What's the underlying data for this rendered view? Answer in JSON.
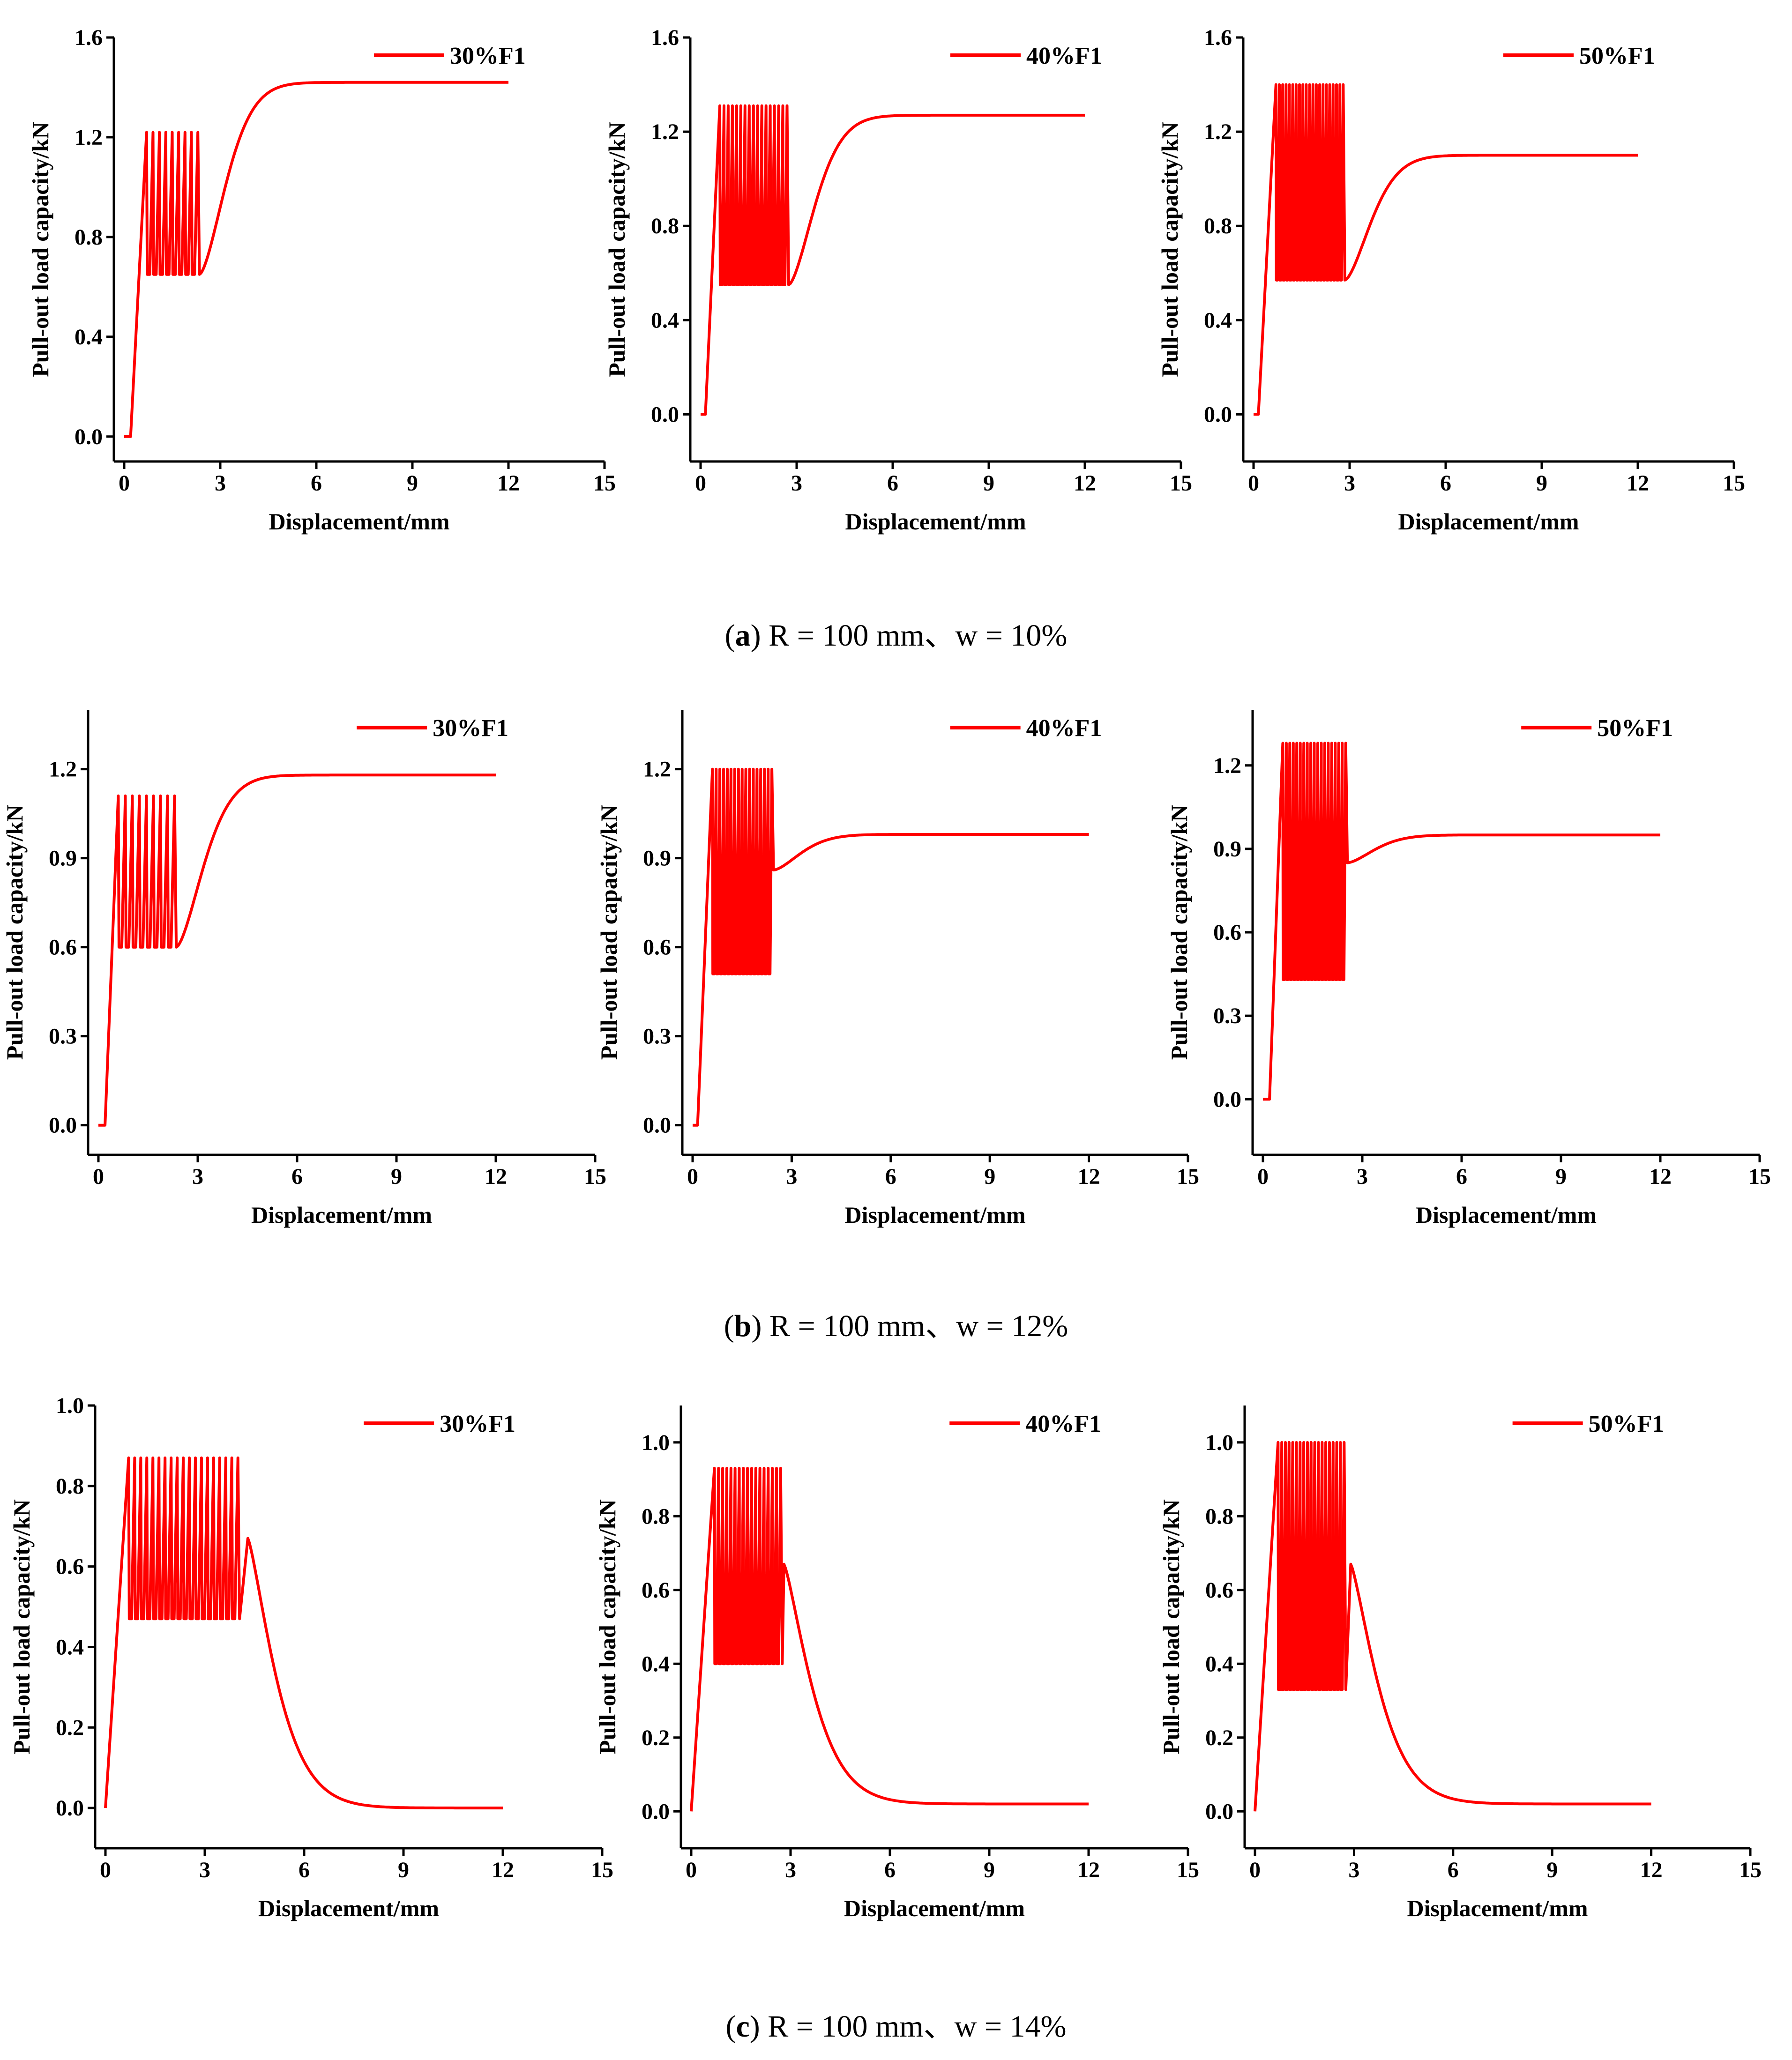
{
  "colors": {
    "series": "#ff0000",
    "axis": "#000000"
  },
  "captions": [
    {
      "label": "a",
      "text": "R = 100 mm、w = 10%"
    },
    {
      "label": "b",
      "text": "R = 100 mm、w = 12%"
    },
    {
      "label": "c",
      "text": "R = 100 mm、w = 14%"
    }
  ],
  "chart_data": [
    {
      "panel": "a-1",
      "type": "line",
      "legend": "30%F1",
      "xlabel": "Displacement/mm",
      "ylabel": "Pull-out load capacity/kN",
      "xlim": [
        0,
        15
      ],
      "xticks": [
        0,
        3,
        6,
        9,
        12,
        15
      ],
      "ylim": [
        -0.1,
        1.6
      ],
      "yticks": [
        0.0,
        0.4,
        0.8,
        1.2,
        1.6
      ],
      "yfmt": 1,
      "ramp_end": 0.2,
      "osc_start": 0.7,
      "osc_end": 2.3,
      "peak": 1.22,
      "trough": 0.65,
      "cycles": 8,
      "post": "rise",
      "post_start_y": 0.65,
      "plateau": 1.42,
      "x_end": 12
    },
    {
      "panel": "a-2",
      "type": "line",
      "legend": "40%F1",
      "xlabel": "Displacement/mm",
      "ylabel": "Pull-out load capacity/kN",
      "xlim": [
        0,
        15
      ],
      "xticks": [
        0,
        3,
        6,
        9,
        12,
        15
      ],
      "ylim": [
        -0.2,
        1.6
      ],
      "yticks": [
        0.0,
        0.4,
        0.8,
        1.2,
        1.6
      ],
      "yfmt": 1,
      "ramp_end": 0.15,
      "osc_start": 0.6,
      "osc_end": 2.7,
      "peak": 1.31,
      "trough": 0.55,
      "cycles": 16,
      "post": "rise",
      "post_start_y": 0.55,
      "plateau": 1.27,
      "x_end": 12
    },
    {
      "panel": "a-3",
      "type": "line",
      "legend": "50%F1",
      "xlabel": "Displacement/mm",
      "ylabel": "Pull-out load capacity/kN",
      "xlim": [
        0,
        15
      ],
      "xticks": [
        0,
        3,
        6,
        9,
        12,
        15
      ],
      "ylim": [
        -0.2,
        1.6
      ],
      "yticks": [
        0.0,
        0.4,
        0.8,
        1.2,
        1.6
      ],
      "yfmt": 1,
      "ramp_end": 0.15,
      "osc_start": 0.7,
      "osc_end": 2.8,
      "peak": 1.4,
      "trough": 0.57,
      "cycles": 20,
      "post": "rise",
      "post_start_y": 0.57,
      "plateau": 1.1,
      "x_end": 12
    },
    {
      "panel": "b-1",
      "type": "line",
      "legend": "30%F1",
      "xlabel": "Displacement/mm",
      "ylabel": "Pull-out load capacity/kN",
      "xlim": [
        0,
        15
      ],
      "xticks": [
        0,
        3,
        6,
        9,
        12,
        15
      ],
      "ylim": [
        -0.1,
        1.4
      ],
      "yticks": [
        0.0,
        0.3,
        0.6,
        0.9,
        1.2
      ],
      "yfmt": 1,
      "ramp_end": 0.2,
      "osc_start": 0.6,
      "osc_end": 2.3,
      "peak": 1.11,
      "trough": 0.6,
      "cycles": 8,
      "post": "rise",
      "post_start_y": 0.6,
      "plateau": 1.18,
      "x_end": 12
    },
    {
      "panel": "b-2",
      "type": "line",
      "legend": "40%F1",
      "xlabel": "Displacement/mm",
      "ylabel": "Pull-out load capacity/kN",
      "xlim": [
        0,
        15
      ],
      "xticks": [
        0,
        3,
        6,
        9,
        12,
        15
      ],
      "ylim": [
        -0.1,
        1.4
      ],
      "yticks": [
        0.0,
        0.3,
        0.6,
        0.9,
        1.2
      ],
      "yfmt": 1,
      "ramp_end": 0.15,
      "osc_start": 0.6,
      "osc_end": 2.4,
      "peak": 1.2,
      "trough": 0.51,
      "cycles": 16,
      "post": "rise",
      "post_start_y": 0.86,
      "plateau": 0.98,
      "x_end": 12
    },
    {
      "panel": "b-3",
      "type": "line",
      "legend": "50%F1",
      "xlabel": "Displacement/mm",
      "ylabel": "Pull-out load capacity/kN",
      "xlim": [
        0,
        15
      ],
      "xticks": [
        0,
        3,
        6,
        9,
        12,
        15
      ],
      "ylim": [
        -0.2,
        1.4
      ],
      "yticks": [
        0.0,
        0.3,
        0.6,
        0.9,
        1.2
      ],
      "yfmt": 1,
      "ramp_end": 0.2,
      "osc_start": 0.6,
      "osc_end": 2.5,
      "peak": 1.28,
      "trough": 0.43,
      "cycles": 18,
      "post": "rise",
      "post_start_y": 0.85,
      "plateau": 0.95,
      "x_end": 12
    },
    {
      "panel": "c-1",
      "type": "line",
      "legend": "30%F1",
      "xlabel": "Displacement/mm",
      "ylabel": "Pull-out load capacity/kN",
      "xlim": [
        0,
        15
      ],
      "xticks": [
        0,
        3,
        6,
        9,
        12,
        15
      ],
      "ylim": [
        -0.1,
        1.0
      ],
      "yticks": [
        0.0,
        0.2,
        0.4,
        0.6,
        0.8,
        1.0
      ],
      "yfmt": 1,
      "ramp_end": 0.0,
      "osc_start": 0.7,
      "osc_end": 4.0,
      "peak": 0.87,
      "trough": 0.47,
      "cycles": 18,
      "post": "decay",
      "bump_x": 4.3,
      "bump_y": 0.67,
      "plateau": 0.0,
      "x_end": 12
    },
    {
      "panel": "c-2",
      "type": "line",
      "legend": "40%F1",
      "xlabel": "Displacement/mm",
      "ylabel": "Pull-out load capacity/kN",
      "xlim": [
        0,
        15
      ],
      "xticks": [
        0,
        3,
        6,
        9,
        12,
        15
      ],
      "ylim": [
        -0.1,
        1.1
      ],
      "yticks": [
        0.0,
        0.2,
        0.4,
        0.6,
        0.8,
        1.0
      ],
      "yfmt": 1,
      "ramp_end": 0.0,
      "osc_start": 0.7,
      "osc_end": 2.7,
      "peak": 0.93,
      "trough": 0.4,
      "cycles": 16,
      "post": "decay",
      "bump_x": 2.8,
      "bump_y": 0.67,
      "plateau": 0.02,
      "x_end": 12
    },
    {
      "panel": "c-3",
      "type": "line",
      "legend": "50%F1",
      "xlabel": "Displacement/mm",
      "ylabel": "Pull-out load capacity/kN",
      "xlim": [
        0,
        15
      ],
      "xticks": [
        0,
        3,
        6,
        9,
        12,
        15
      ],
      "ylim": [
        -0.1,
        1.1
      ],
      "yticks": [
        0.0,
        0.2,
        0.4,
        0.6,
        0.8,
        1.0
      ],
      "yfmt": 1,
      "ramp_end": 0.0,
      "osc_start": 0.7,
      "osc_end": 2.7,
      "peak": 1.0,
      "trough": 0.33,
      "cycles": 18,
      "post": "decay",
      "bump_x": 2.9,
      "bump_y": 0.67,
      "plateau": 0.02,
      "x_end": 12
    }
  ]
}
